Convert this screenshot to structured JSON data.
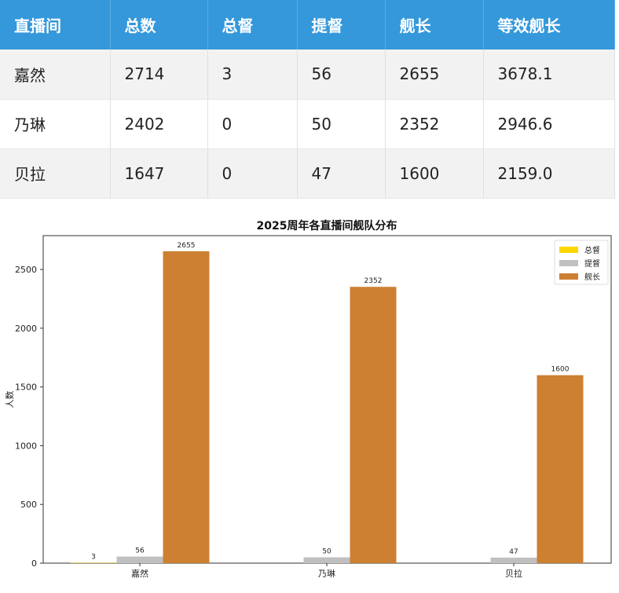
{
  "table": {
    "headers": [
      "直播间",
      "总数",
      "总督",
      "提督",
      "舰长",
      "等效舰长"
    ],
    "rows": [
      [
        "嘉然",
        "2714",
        "3",
        "56",
        "2655",
        "3678.1"
      ],
      [
        "乃琳",
        "2402",
        "0",
        "50",
        "2352",
        "2946.6"
      ],
      [
        "贝拉",
        "1647",
        "0",
        "47",
        "1600",
        "2159.0"
      ]
    ]
  },
  "chart_data": {
    "type": "bar",
    "title": "2025周年各直播间舰队分布",
    "xlabel": "",
    "ylabel": "人数",
    "categories": [
      "嘉然",
      "乃琳",
      "贝拉"
    ],
    "series": [
      {
        "name": "总督",
        "values": [
          3,
          0,
          0
        ],
        "color": "#ffd700"
      },
      {
        "name": "提督",
        "values": [
          56,
          50,
          47
        ],
        "color": "#c0c0c0"
      },
      {
        "name": "舰长",
        "values": [
          2655,
          2352,
          1600
        ],
        "color": "#cd7f32"
      }
    ],
    "data_labels": [
      [
        "3",
        "",
        ""
      ],
      [
        "56",
        "50",
        "47"
      ],
      [
        "2655",
        "2352",
        "1600"
      ]
    ],
    "yticks": [
      0,
      500,
      1000,
      1500,
      2000,
      2500
    ],
    "ylim": [
      0,
      2788
    ],
    "grid": false,
    "legend": "top-right"
  }
}
